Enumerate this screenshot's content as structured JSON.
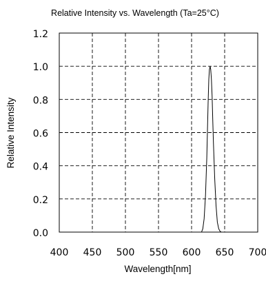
{
  "chart_data": {
    "type": "line",
    "title": "Relative Intensity vs. Wavelength (Ta=25°C)",
    "xlabel": "Wavelength[nm]",
    "ylabel": "Relative Intensity",
    "xlim": [
      400,
      700
    ],
    "ylim": [
      0.0,
      1.2
    ],
    "x_ticks": [
      "400",
      "450",
      "500",
      "550",
      "600",
      "650",
      "700"
    ],
    "y_ticks": [
      "0.0",
      "0.2",
      "0.4",
      "0.6",
      "0.8",
      "1.0",
      "1.2"
    ],
    "grid": true,
    "series": [
      {
        "x": [
          615,
          617,
          619,
          621,
          623,
          625,
          626,
          627,
          628,
          629,
          630,
          631,
          632,
          633,
          635,
          637,
          639,
          641,
          643,
          645
        ],
        "y": [
          0.0,
          0.02,
          0.08,
          0.22,
          0.45,
          0.78,
          0.92,
          0.98,
          1.0,
          0.98,
          0.92,
          0.82,
          0.68,
          0.54,
          0.32,
          0.16,
          0.06,
          0.02,
          0.005,
          0.0
        ]
      }
    ]
  }
}
